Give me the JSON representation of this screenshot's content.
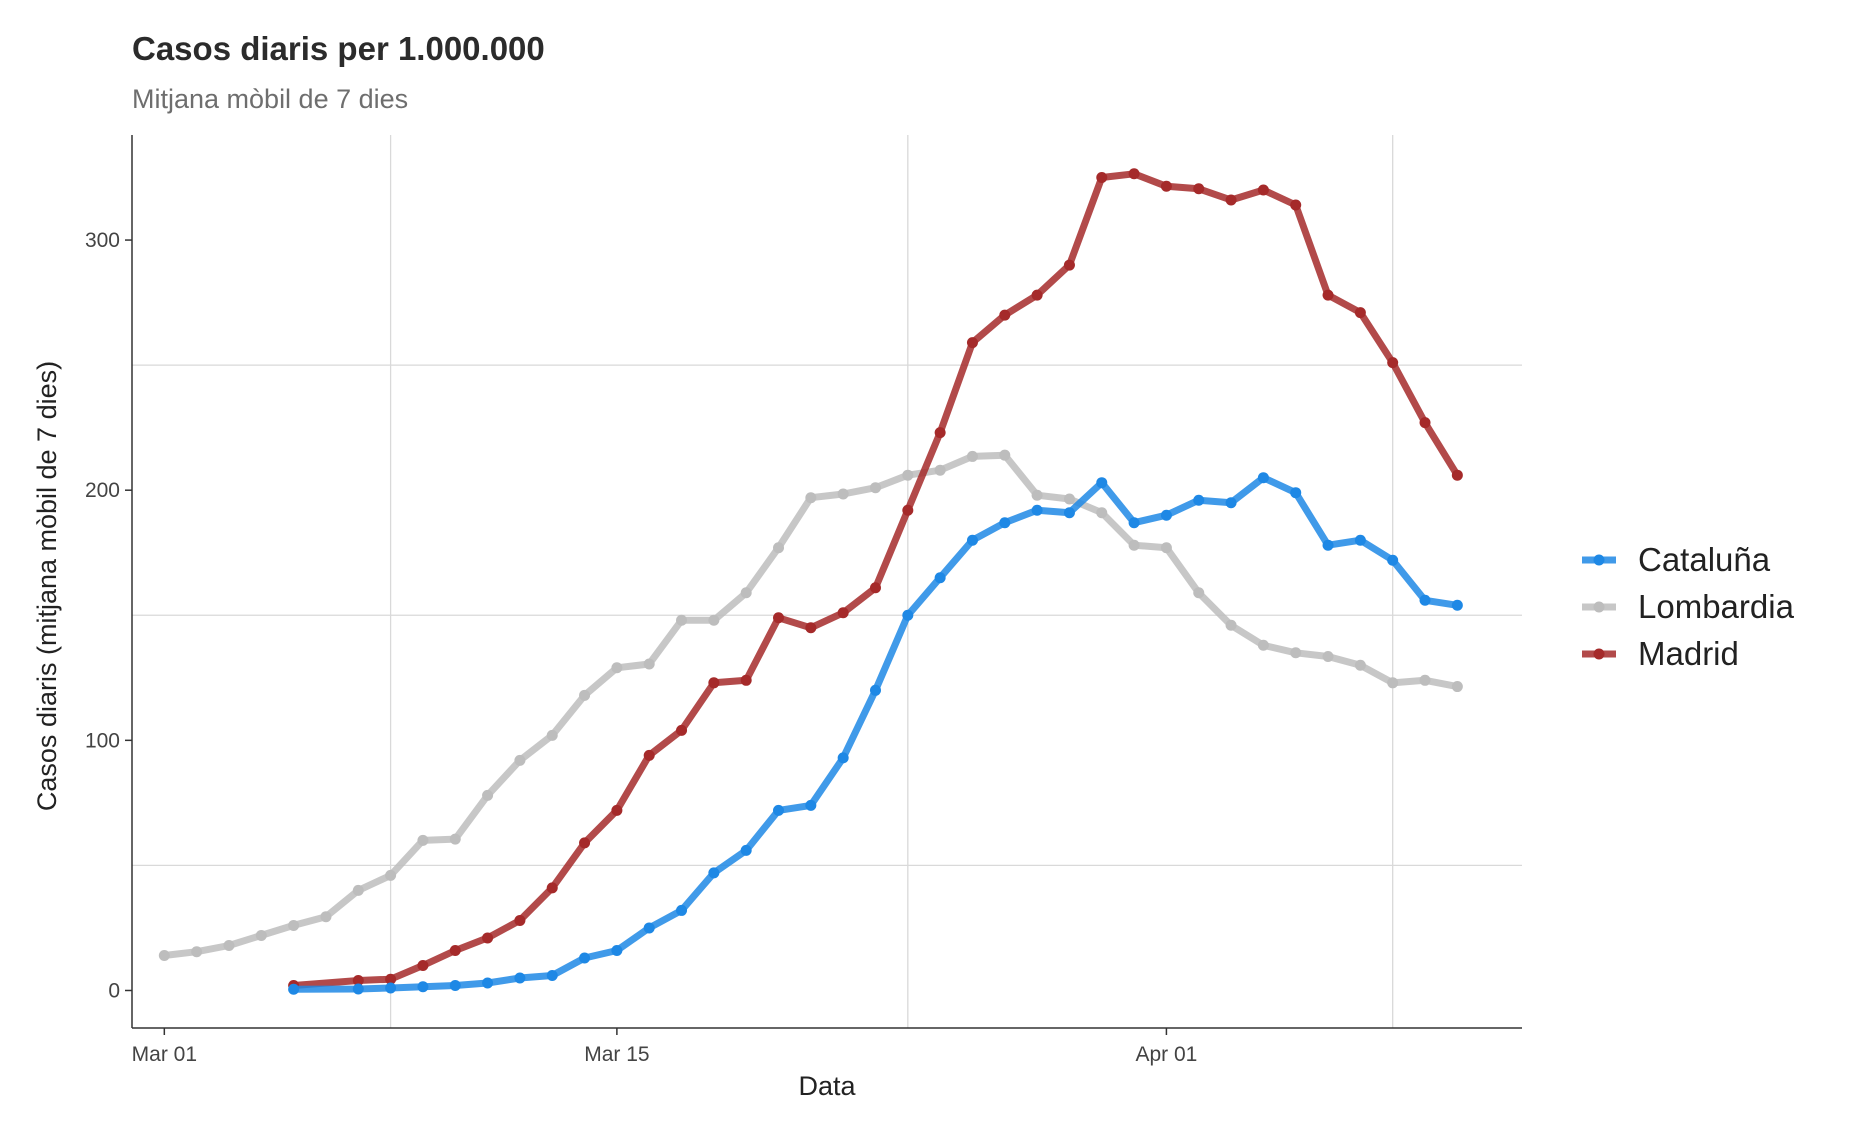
{
  "chart_data": {
    "type": "line",
    "title": "Casos diaris per 1.000.000",
    "subtitle": "Mitjana mòbil de 7 dies",
    "xlabel": "Data",
    "ylabel": "Casos diaris (mitjana mòbil de 7 dies)",
    "x_type": "date",
    "xlim": [
      "2020-02-29",
      "2020-04-12"
    ],
    "ylim": [
      -15,
      342
    ],
    "x_ticks": [
      {
        "date": "2020-03-01",
        "label": "Mar 01"
      },
      {
        "date": "2020-03-15",
        "label": "Mar 15"
      },
      {
        "date": "2020-04-01",
        "label": "Apr 01"
      }
    ],
    "x_minor_grid": [
      "2020-03-08",
      "2020-03-24",
      "2020-04-08"
    ],
    "y_ticks": [
      0,
      100,
      200,
      300
    ],
    "y_minor_grid": [
      50,
      150,
      250
    ],
    "grid": true,
    "legend_position": "right",
    "series": [
      {
        "name": "Cataluña",
        "color": "#1E88E5",
        "points": [
          [
            "2020-03-05",
            0.5
          ],
          [
            "2020-03-07",
            0.6
          ],
          [
            "2020-03-08",
            1
          ],
          [
            "2020-03-09",
            1.5
          ],
          [
            "2020-03-10",
            2
          ],
          [
            "2020-03-11",
            3
          ],
          [
            "2020-03-12",
            5
          ],
          [
            "2020-03-13",
            6
          ],
          [
            "2020-03-14",
            13
          ],
          [
            "2020-03-15",
            16
          ],
          [
            "2020-03-16",
            25
          ],
          [
            "2020-03-17",
            32
          ],
          [
            "2020-03-18",
            47
          ],
          [
            "2020-03-19",
            56
          ],
          [
            "2020-03-20",
            72
          ],
          [
            "2020-03-21",
            74
          ],
          [
            "2020-03-22",
            93
          ],
          [
            "2020-03-23",
            120
          ],
          [
            "2020-03-24",
            150
          ],
          [
            "2020-03-25",
            165
          ],
          [
            "2020-03-26",
            180
          ],
          [
            "2020-03-27",
            187
          ],
          [
            "2020-03-28",
            192
          ],
          [
            "2020-03-29",
            191
          ],
          [
            "2020-03-30",
            203
          ],
          [
            "2020-03-31",
            187
          ],
          [
            "2020-04-01",
            190
          ],
          [
            "2020-04-02",
            196
          ],
          [
            "2020-04-03",
            195
          ],
          [
            "2020-04-04",
            205
          ],
          [
            "2020-04-05",
            199
          ],
          [
            "2020-04-06",
            178
          ],
          [
            "2020-04-07",
            180
          ],
          [
            "2020-04-08",
            172
          ],
          [
            "2020-04-09",
            156
          ],
          [
            "2020-04-10",
            154
          ]
        ]
      },
      {
        "name": "Lombardia",
        "color": "#BDBDBD",
        "points": [
          [
            "2020-03-01",
            14
          ],
          [
            "2020-03-02",
            15.5
          ],
          [
            "2020-03-03",
            18
          ],
          [
            "2020-03-04",
            22
          ],
          [
            "2020-03-05",
            26
          ],
          [
            "2020-03-06",
            29.5
          ],
          [
            "2020-03-07",
            40
          ],
          [
            "2020-03-08",
            46
          ],
          [
            "2020-03-09",
            60
          ],
          [
            "2020-03-10",
            60.5
          ],
          [
            "2020-03-11",
            78
          ],
          [
            "2020-03-12",
            92
          ],
          [
            "2020-03-13",
            102
          ],
          [
            "2020-03-14",
            118
          ],
          [
            "2020-03-15",
            129
          ],
          [
            "2020-03-16",
            130.5
          ],
          [
            "2020-03-17",
            148
          ],
          [
            "2020-03-18",
            148
          ],
          [
            "2020-03-19",
            159
          ],
          [
            "2020-03-20",
            177
          ],
          [
            "2020-03-21",
            197
          ],
          [
            "2020-03-22",
            198.5
          ],
          [
            "2020-03-23",
            201
          ],
          [
            "2020-03-24",
            206
          ],
          [
            "2020-03-25",
            208
          ],
          [
            "2020-03-26",
            213.5
          ],
          [
            "2020-03-27",
            214
          ],
          [
            "2020-03-28",
            198
          ],
          [
            "2020-03-29",
            196.5
          ],
          [
            "2020-03-30",
            191
          ],
          [
            "2020-03-31",
            178
          ],
          [
            "2020-04-01",
            177
          ],
          [
            "2020-04-02",
            159
          ],
          [
            "2020-04-03",
            146
          ],
          [
            "2020-04-04",
            138
          ],
          [
            "2020-04-05",
            135
          ],
          [
            "2020-04-06",
            133.5
          ],
          [
            "2020-04-07",
            130
          ],
          [
            "2020-04-08",
            123
          ],
          [
            "2020-04-09",
            124
          ],
          [
            "2020-04-10",
            121.5
          ]
        ]
      },
      {
        "name": "Madrid",
        "color": "#A52A2A",
        "points": [
          [
            "2020-03-05",
            2
          ],
          [
            "2020-03-07",
            4
          ],
          [
            "2020-03-08",
            4.5
          ],
          [
            "2020-03-09",
            10
          ],
          [
            "2020-03-10",
            16
          ],
          [
            "2020-03-11",
            21
          ],
          [
            "2020-03-12",
            28
          ],
          [
            "2020-03-13",
            41
          ],
          [
            "2020-03-14",
            59
          ],
          [
            "2020-03-15",
            72
          ],
          [
            "2020-03-16",
            94
          ],
          [
            "2020-03-17",
            104
          ],
          [
            "2020-03-18",
            123
          ],
          [
            "2020-03-19",
            124
          ],
          [
            "2020-03-20",
            149
          ],
          [
            "2020-03-21",
            145
          ],
          [
            "2020-03-22",
            151
          ],
          [
            "2020-03-23",
            161
          ],
          [
            "2020-03-24",
            192
          ],
          [
            "2020-03-25",
            223
          ],
          [
            "2020-03-26",
            259
          ],
          [
            "2020-03-27",
            270
          ],
          [
            "2020-03-28",
            278
          ],
          [
            "2020-03-29",
            290
          ],
          [
            "2020-03-30",
            325
          ],
          [
            "2020-03-31",
            326.5
          ],
          [
            "2020-04-01",
            321.5
          ],
          [
            "2020-04-02",
            320.5
          ],
          [
            "2020-04-03",
            316
          ],
          [
            "2020-04-04",
            320
          ],
          [
            "2020-04-05",
            314
          ],
          [
            "2020-04-06",
            278
          ],
          [
            "2020-04-07",
            271
          ],
          [
            "2020-04-08",
            251
          ],
          [
            "2020-04-09",
            227
          ],
          [
            "2020-04-10",
            206
          ]
        ]
      }
    ]
  }
}
